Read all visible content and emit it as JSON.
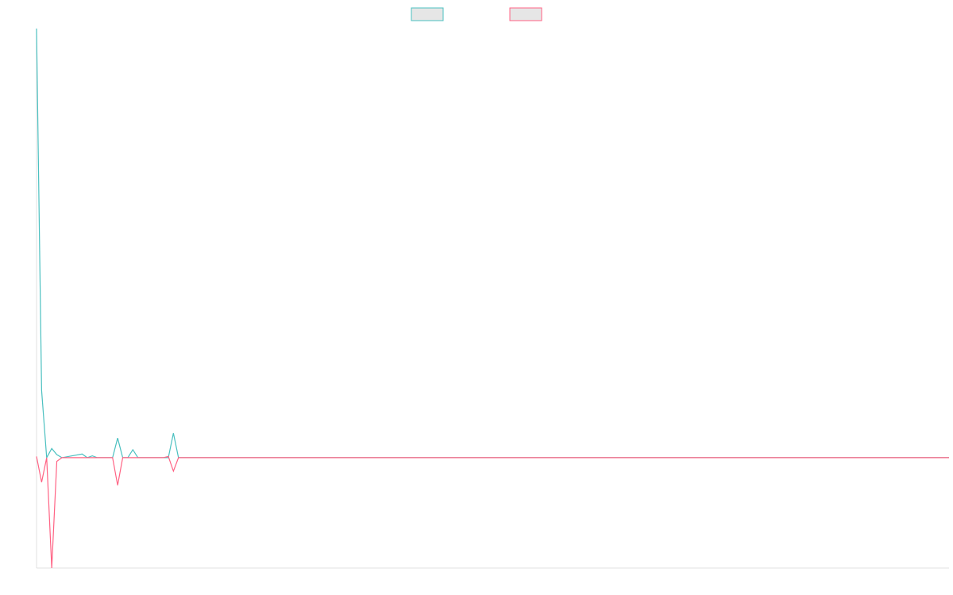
{
  "chart_data": {
    "type": "line",
    "title": "",
    "xlabel": "",
    "ylabel": "",
    "grid": false,
    "legend": "top-center",
    "x_count": 180,
    "ylim": [
      -18,
      70
    ],
    "series": [
      {
        "color": "#4bc0c0",
        "fill": "#e6e6e6",
        "points": [
          [
            0,
            70
          ],
          [
            1,
            11
          ],
          [
            2,
            0
          ],
          [
            3,
            1.5
          ],
          [
            4,
            0.5
          ],
          [
            5,
            0
          ],
          [
            9,
            0.6
          ],
          [
            10,
            0
          ],
          [
            11,
            0.3
          ],
          [
            12,
            0
          ],
          [
            15,
            0
          ],
          [
            16,
            3.2
          ],
          [
            17,
            0
          ],
          [
            18,
            0
          ],
          [
            19,
            1.3
          ],
          [
            20,
            0
          ],
          [
            26,
            0
          ],
          [
            27,
            4
          ],
          [
            28,
            0
          ],
          [
            29,
            0
          ],
          [
            180,
            0
          ]
        ]
      },
      {
        "color": "#ff6384",
        "fill": "#e6e6e6",
        "points": [
          [
            0,
            0.2
          ],
          [
            1,
            -4
          ],
          [
            2,
            0
          ],
          [
            3,
            -18
          ],
          [
            4,
            -0.6
          ],
          [
            5,
            0
          ],
          [
            15,
            0
          ],
          [
            16,
            -4.5
          ],
          [
            17,
            0
          ],
          [
            25,
            0
          ],
          [
            26,
            0.2
          ],
          [
            27,
            -2.2
          ],
          [
            28,
            0
          ],
          [
            29,
            0
          ],
          [
            180,
            0
          ]
        ]
      }
    ]
  }
}
